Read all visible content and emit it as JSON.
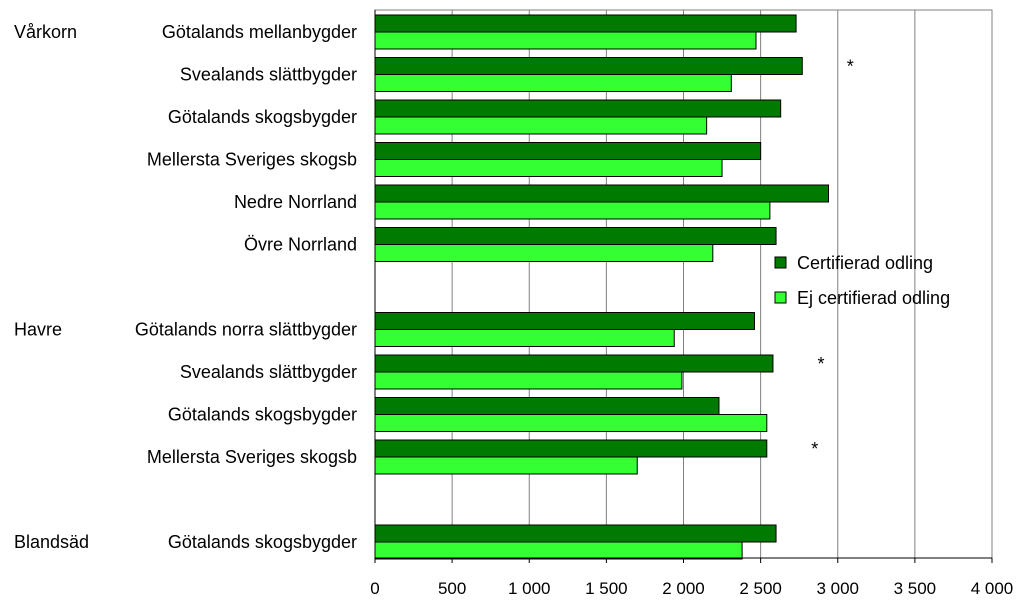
{
  "chart_data": {
    "type": "bar",
    "orientation": "horizontal",
    "xlim": [
      0,
      4000
    ],
    "x_ticks": [
      0,
      500,
      1000,
      1500,
      2000,
      2500,
      3000,
      3500,
      4000
    ],
    "x_tick_labels": [
      "0",
      "500",
      "1 000",
      "1 500",
      "2 000",
      "2 500",
      "3 000",
      "3 500",
      "4 000"
    ],
    "grid": "vertical",
    "legend_position": "right",
    "groups": [
      {
        "label": "Vårkorn",
        "categories": [
          {
            "label": "Götalands mellanbygder",
            "marker": ""
          },
          {
            "label": "Svealands slättbygder",
            "marker": "*"
          },
          {
            "label": "Götalands skogsbygder",
            "marker": ""
          },
          {
            "label": "Mellersta Sveriges skogsb",
            "marker": ""
          },
          {
            "label": "Nedre Norrland",
            "marker": ""
          },
          {
            "label": "Övre Norrland",
            "marker": ""
          }
        ]
      },
      {
        "label": "Havre",
        "categories": [
          {
            "label": "Götalands norra slättbygder",
            "marker": ""
          },
          {
            "label": "Svealands slättbygder",
            "marker": "*"
          },
          {
            "label": "Götalands skogsbygder",
            "marker": ""
          },
          {
            "label": "Mellersta Sveriges skogsb",
            "marker": "*"
          }
        ]
      },
      {
        "label": "Blandsäd",
        "categories": [
          {
            "label": "Götalands skogsbygder",
            "marker": ""
          }
        ]
      }
    ],
    "series": [
      {
        "name": "Certifierad odling",
        "color": "#007a00",
        "values": [
          2730,
          2770,
          2630,
          2500,
          2940,
          2600,
          2460,
          2580,
          2230,
          2540,
          2600
        ]
      },
      {
        "name": "Ej certifierad odling",
        "color": "#33ff33",
        "values": [
          2470,
          2310,
          2150,
          2250,
          2560,
          2190,
          1940,
          1990,
          2540,
          1700,
          2380
        ]
      }
    ]
  }
}
